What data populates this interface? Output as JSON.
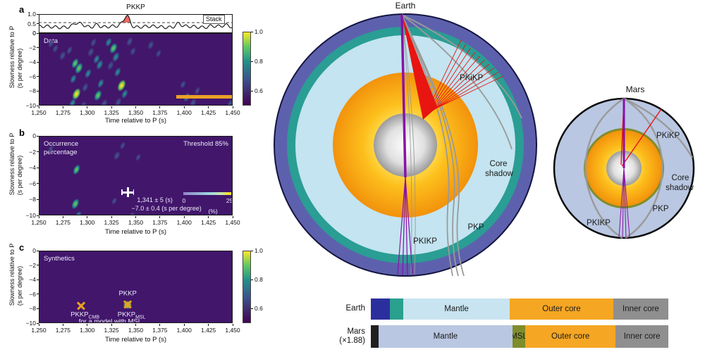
{
  "colors": {
    "heat_bg": "#41166b",
    "viridis": [
      "#440154",
      "#3b528b",
      "#21918c",
      "#5ec962",
      "#fde725"
    ],
    "stack_line": "#111111",
    "stack_fill": "#ec6a60",
    "orange_bar": "#e9a226",
    "annotation_text": "#efe9fb",
    "ray_red": "#e81510",
    "ray_gray": "#9a9a9a",
    "ray_purple": "#8912a8",
    "earth_outer_ring": "#5d61ad",
    "earth_ring2": "#2a9d94",
    "earth_mantle": "#c3e4f0",
    "mars_mantle": "#b9c7e2",
    "msl_olive": "#7f8d2b",
    "marker_orange": "#e8a122",
    "bar_navy": "#2b2f9e",
    "bar_teal": "#2aa08f",
    "bar_lightblue": "#c8e4f0",
    "bar_orange": "#f5a623",
    "bar_gray": "#8f8f8f",
    "bar_black": "#202020"
  },
  "panel_a": {
    "letter": "a",
    "title": "PKKP",
    "stack_label": "Stack",
    "map_label": "Data",
    "ylabel1": "Slowness relative to P",
    "ylabel2": "(s per degree)",
    "xlabel": "Time relative to P (s)"
  },
  "panel_b": {
    "letter": "b",
    "map_label1": "Occurrence",
    "map_label2": "percentage",
    "threshold_label": "Threshold 85%",
    "ylabel1": "Slowness relative to P",
    "ylabel2": "(s per degree)",
    "xlabel": "Time relative to P (s)"
  },
  "panel_c": {
    "letter": "c",
    "map_label": "Synthetics",
    "ylabel1": "Slowness relative to P",
    "ylabel2": "(s per degree)",
    "xlabel": "Time relative to P (s)"
  },
  "earth_diagram": {
    "title": "Earth",
    "label_pkikp_upper": "PKiKP",
    "label_core_shadow1": "Core",
    "label_core_shadow2": "shadow",
    "label_pkp": "PKP",
    "label_pkikp_lower": "PKIKP"
  },
  "mars_diagram": {
    "title": "Mars",
    "label_pkikp_upper": "PKiKP",
    "label_core_shadow1": "Core",
    "label_core_shadow2": "shadow",
    "label_pkp": "PKP",
    "label_pkikp_lower": "PKIKP"
  },
  "legend_bars": {
    "rows": [
      {
        "label_lines": [
          "Earth"
        ],
        "segments": [
          {
            "label": "",
            "color": "#2b2f9e",
            "pct": 6.4
          },
          {
            "label": "",
            "color": "#2aa08f",
            "pct": 4.5
          },
          {
            "label": "Mantle",
            "color": "#c8e4f0",
            "pct": 35.8
          },
          {
            "label": "Outer core",
            "color": "#f5a623",
            "pct": 34.8
          },
          {
            "label": "Inner core",
            "color": "#8f8f8f",
            "pct": 18.5
          }
        ]
      },
      {
        "label_lines": [
          "Mars",
          "(×1.88)"
        ],
        "segments": [
          {
            "label": "",
            "color": "#202020",
            "pct": 2.6
          },
          {
            "label": "Mantle",
            "color": "#b9c7e2",
            "pct": 45.0
          },
          {
            "label": "MSL",
            "color": "#7f8d2b",
            "pct": 4.3
          },
          {
            "label": "Outer core",
            "color": "#f5a623",
            "pct": 30.4
          },
          {
            "label": "Inner core",
            "color": "#8f8f8f",
            "pct": 17.7
          }
        ]
      }
    ]
  },
  "chart_data": [
    {
      "id": "a",
      "type": "heatmap",
      "title": "PKKP",
      "xlabel": "Time relative to P (s)",
      "ylabel": "Slowness relative to P (s per degree)",
      "xlim": [
        1250,
        1450
      ],
      "ylim": [
        -10,
        0
      ],
      "x_ticks": [
        "1,250",
        "1,275",
        "1,300",
        "1,325",
        "1,350",
        "1,375",
        "1,400",
        "1,425",
        "1,450"
      ],
      "y_ticks": [
        "0",
        "−2",
        "−4",
        "−6",
        "−8",
        "−10"
      ],
      "colorbar_ticks": [
        "1.0",
        "0.8",
        "0.6"
      ],
      "colorbar_range": [
        0.5,
        1.0
      ],
      "stack": {
        "label": "Stack",
        "yticks": [
          "1.0",
          "0.5",
          "0"
        ],
        "ylim": [
          0,
          1
        ],
        "threshold": 0.55,
        "base": 0.33,
        "wiggle_amp": 0.075,
        "wiggle_period": 8.4,
        "peaks": [
          [
            1288,
            0.17,
            2.6
          ],
          [
            1294,
            0.12,
            2.6
          ],
          [
            1310,
            0.14,
            2.6
          ],
          [
            1336,
            0.1,
            3.0
          ],
          [
            1341,
            0.58,
            2.9
          ],
          [
            1394,
            0.17,
            2.7
          ],
          [
            1428,
            0.06,
            3.0
          ],
          [
            1443,
            0.07,
            2.6
          ]
        ]
      },
      "blobs": [
        [
          1262,
          -1.3,
          0.45
        ],
        [
          1266,
          -2.1,
          0.4
        ],
        [
          1274,
          -3.0,
          0.5
        ],
        [
          1281,
          -2.3,
          0.45
        ],
        [
          1287,
          -4.1,
          0.75
        ],
        [
          1291,
          -4.8,
          0.9
        ],
        [
          1285,
          -6.2,
          0.55
        ],
        [
          1288,
          -8.3,
          1.0
        ],
        [
          1284,
          -9.5,
          0.6
        ],
        [
          1295,
          -9.9,
          0.5
        ],
        [
          1297,
          -7.4,
          0.5
        ],
        [
          1300,
          -5.5,
          0.6
        ],
        [
          1303,
          -2.5,
          0.5
        ],
        [
          1306,
          -1.2,
          0.45
        ],
        [
          1309,
          -3.5,
          0.55
        ],
        [
          1312,
          -4.3,
          0.7
        ],
        [
          1313,
          -6.8,
          0.6
        ],
        [
          1310,
          -8.5,
          0.8
        ],
        [
          1317,
          -9.6,
          0.5
        ],
        [
          1321,
          -1.2,
          0.55
        ],
        [
          1326,
          -2.0,
          0.8
        ],
        [
          1329,
          -3.2,
          0.7
        ],
        [
          1323,
          -4.3,
          0.5
        ],
        [
          1331,
          -5.3,
          0.6
        ],
        [
          1335,
          -7.1,
          1.0
        ],
        [
          1338,
          -8.3,
          0.6
        ],
        [
          1331,
          -9.4,
          0.5
        ],
        [
          1343,
          -1.0,
          0.5
        ],
        [
          1346,
          -2.4,
          0.4
        ],
        [
          1365,
          -1.5,
          0.5
        ],
        [
          1373,
          -2.7,
          0.35
        ],
        [
          1398,
          -7.0,
          0.4
        ],
        [
          1402,
          -8.7,
          0.55
        ],
        [
          1408,
          -9.5,
          0.5
        ],
        [
          1413,
          -7.9,
          0.35
        ],
        [
          1447,
          -9.7,
          0.45
        ]
      ],
      "orange_bar": {
        "t0": 1391,
        "t1": 1450,
        "s": -8.7
      }
    },
    {
      "id": "b",
      "type": "heatmap",
      "xlabel": "Time relative to P (s)",
      "ylabel": "Slowness relative to P (s per degree)",
      "xlim": [
        1250,
        1450
      ],
      "ylim": [
        -10,
        0
      ],
      "x_ticks": [
        "1,250",
        "1,275",
        "1,300",
        "1,325",
        "1,350",
        "1,375",
        "1,400",
        "1,425",
        "1,450"
      ],
      "y_ticks": [
        "0",
        "−2",
        "−4",
        "−6",
        "−8",
        "−10"
      ],
      "threshold": "Threshold 85%",
      "blobs": [
        [
          1262,
          -1.6,
          0.3
        ],
        [
          1288,
          -4.2,
          0.75
        ],
        [
          1287,
          -8.4,
          0.8
        ],
        [
          1290,
          -9.9,
          0.55
        ],
        [
          1330,
          -2.4,
          0.5
        ],
        [
          1336,
          -1.1,
          0.35
        ],
        [
          1327,
          -8.1,
          0.3
        ],
        [
          1345,
          -10.0,
          0.5
        ],
        [
          1352,
          -2.6,
          0.3
        ]
      ],
      "detection_marker": {
        "t": 1341,
        "s": -7.0,
        "t_err": 5,
        "s_err": 0.4
      },
      "texts": [
        {
          "name": "time-annotation",
          "t": 1369,
          "s": -8.0,
          "main": "1,341 ± 5 (s)"
        },
        {
          "name": "slowness-annotation",
          "t": 1381,
          "s": -9.05,
          "main": "−7.0 ± 0.4 (s per degree)"
        },
        {
          "name": "inset-tick-0",
          "t": 1399,
          "s": -8.05,
          "main": "0",
          "size": 8.5
        },
        {
          "name": "inset-tick-25",
          "t": 1446,
          "s": -8.05,
          "main": "25",
          "size": 8.5
        },
        {
          "name": "inset-unit",
          "t": 1429,
          "s": -9.35,
          "main": "(%)",
          "size": 8.5
        }
      ],
      "inset_colorbar": {
        "t0": 1398,
        "t1": 1448,
        "s": -7.15,
        "min": 0,
        "max": 25,
        "unit": "(%)"
      }
    },
    {
      "id": "c",
      "type": "heatmap",
      "xlabel": "Time relative to P (s)",
      "ylabel": "Slowness relative to P (s per degree)",
      "xlim": [
        1250,
        1450
      ],
      "ylim": [
        -10,
        0
      ],
      "x_ticks": [
        "1,250",
        "1,275",
        "1,300",
        "1,325",
        "1,350",
        "1,375",
        "1,400",
        "1,425",
        "1,450"
      ],
      "y_ticks": [
        "0",
        "−2",
        "−4",
        "−6",
        "−8",
        "−10"
      ],
      "colorbar_ticks": [
        "1.0",
        "0.8",
        "0.6"
      ],
      "colorbar_range": [
        0.5,
        1.0
      ],
      "blobs": [],
      "x_markers": [
        {
          "name": "pkkp-cmb-marker",
          "t": 1293,
          "s": -7.5,
          "glow": false
        },
        {
          "name": "pkkp-msl-marker",
          "t": 1341,
          "s": -7.35,
          "glow": true
        }
      ],
      "texts": [
        {
          "name": "pkkp-label",
          "t": 1341,
          "s": -5.8,
          "main": "PKKP",
          "size": 9.5
        },
        {
          "name": "pkkp-cmb-label",
          "t": 1297,
          "s": -8.8,
          "main": "PKKP",
          "sub": "CMB",
          "size": 9.5
        },
        {
          "name": "pkkp-msl-label",
          "t": 1345,
          "s": -8.8,
          "main": "PKKP",
          "sub": "MSL",
          "size": 9.5
        },
        {
          "name": "model-note",
          "t": 1323,
          "s": -9.75,
          "main": "for a model with MSL",
          "size": 9.5
        }
      ]
    }
  ]
}
